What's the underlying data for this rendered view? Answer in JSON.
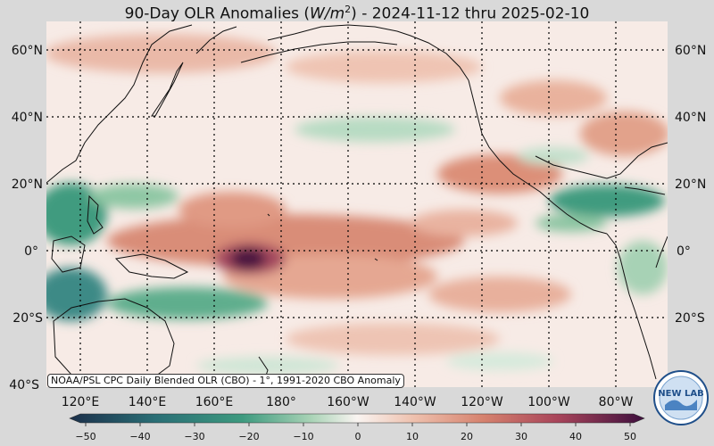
{
  "title": {
    "prefix": "90-Day OLR Anomalies (",
    "unit_base": "W/m",
    "unit_exp": "2",
    "suffix": ") - 2024-11-12 thru 2025-02-10"
  },
  "lat_labels": [
    "60°N",
    "40°N",
    "20°N",
    "0°",
    "20°S",
    "40°S"
  ],
  "lon_labels": [
    "120°E",
    "140°E",
    "160°E",
    "180°",
    "160°W",
    "140°W",
    "120°W",
    "100°W",
    "80°W"
  ],
  "colorbar": {
    "ticks": [
      "−50",
      "−40",
      "−30",
      "−20",
      "−10",
      "0",
      "10",
      "20",
      "30",
      "40",
      "50"
    ],
    "min": -50,
    "max": 50
  },
  "source_note": "NOAA/PSL CPC Daily Blended OLR (CBO) - 1°, 1991-2020 CBO Anomaly",
  "logo_text": "NEW LAB",
  "colors": {
    "strong_negative": "#1f3e52",
    "negative": "#2e8a6e",
    "weak_negative": "#b9dcc3",
    "neutral": "#f8efeb",
    "positive": "#e3a48e",
    "strong_positive": "#c9615a",
    "extreme_positive": "#4a1440"
  },
  "chart_data": {
    "type": "heatmap",
    "variable": "OLR anomaly",
    "period": "2024-11-12 thru 2025-02-10",
    "region": {
      "lon_range": [
        "110°E",
        "65°W"
      ],
      "lat_range": [
        "40°S",
        "68°N"
      ]
    },
    "features": [
      {
        "location": "Central Pacific near Equator 165°E-180°",
        "anomaly": 50,
        "sign": "positive"
      },
      {
        "location": "Equatorial Pacific 180°-140°W",
        "anomaly": 20,
        "sign": "positive"
      },
      {
        "location": "Mexico / SE United States",
        "anomaly": 20,
        "sign": "positive"
      },
      {
        "location": "Maritime Continent / Philippines 5°N-10°S",
        "anomaly": -30,
        "sign": "negative"
      },
      {
        "location": "Central America / Caribbean 5°N-15°N",
        "anomaly": -25,
        "sign": "negative"
      },
      {
        "location": "South Pacific Convergence Zone 15°S-20°S",
        "anomaly": -20,
        "sign": "negative"
      },
      {
        "location": "North Pacific 35°N 170°W-140°W",
        "anomaly": -10,
        "sign": "negative"
      }
    ]
  }
}
